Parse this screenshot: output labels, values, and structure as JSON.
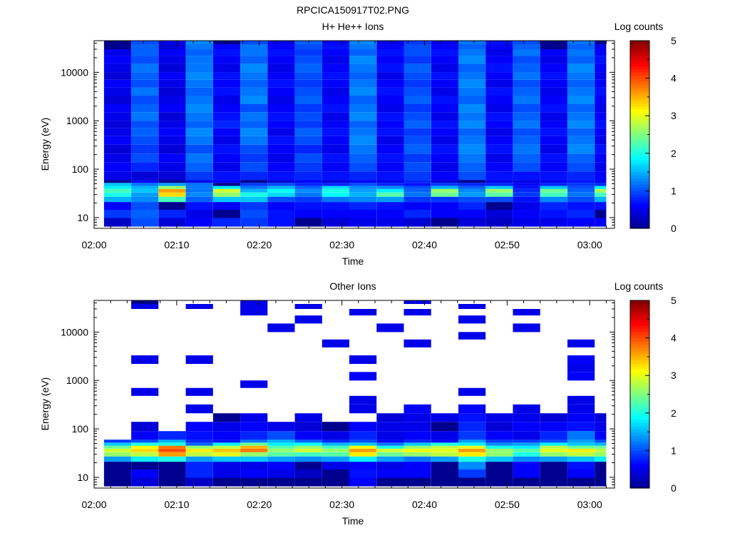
{
  "figure": {
    "title": "RPCICA150917T02.PNG"
  },
  "colormap": {
    "name": "jet",
    "stops": [
      "#00008f",
      "#0000ff",
      "#0080ff",
      "#00ffff",
      "#80ff80",
      "#ffff00",
      "#ff8000",
      "#ff0000",
      "#800000"
    ]
  },
  "chart_data": [
    {
      "type": "heatmap",
      "title": "H+ He++ Ions",
      "xlabel": "Time",
      "ylabel": "Energy (eV)",
      "colorbar_label": "Log counts",
      "colorbar_ticks": [
        "0",
        "1",
        "2",
        "3",
        "4",
        "5"
      ],
      "colorbar_range": [
        0,
        5
      ],
      "x_ticks": [
        "02:00",
        "02:10",
        "02:20",
        "02:30",
        "02:40",
        "02:50",
        "03:00"
      ],
      "x_range_minutes": [
        0,
        63
      ],
      "y_scale": "log",
      "y_ticks": [
        "10",
        "100",
        "1000",
        "10000"
      ],
      "y_range": [
        6,
        45000
      ],
      "time_bins_minutes": [
        1.2,
        4.5,
        7.8,
        11.1,
        14.4,
        17.7,
        21.0,
        24.3,
        27.6,
        30.9,
        34.2,
        37.5,
        40.8,
        44.1,
        47.4,
        50.7,
        54.0,
        57.3,
        60.6,
        62.0
      ],
      "energy_bins_eV": [
        6.5,
        9.8,
        14.5,
        21,
        27,
        33,
        39,
        45,
        52,
        60,
        90,
        140,
        210,
        320,
        480,
        700,
        1000,
        1500,
        2200,
        3300,
        4800,
        7000,
        10000,
        15000,
        22000,
        30000,
        38000,
        45000
      ],
      "values": [
        [
          0.3,
          0.9,
          0.6,
          1.5,
          2.0,
          2.2,
          1.8,
          1.6,
          0.0,
          0.5,
          0.6,
          0.5,
          0.4,
          0.6,
          0.5,
          0.4,
          0.5,
          0.6,
          0.4,
          0.5,
          0.6,
          0.4,
          0.5,
          0.6,
          0.5,
          0.0,
          0.0
        ],
        [
          1.0,
          1.1,
          1.0,
          1.3,
          1.4,
          1.6,
          1.5,
          1.2,
          0.6,
          0.4,
          0.8,
          1.0,
          0.9,
          1.0,
          1.1,
          1.0,
          1.2,
          1.1,
          1.0,
          1.2,
          1.0,
          1.1,
          1.2,
          1.0,
          1.1,
          1.1,
          1.0
        ],
        [
          0.4,
          0.8,
          0.0,
          2.2,
          3.3,
          3.6,
          2.6,
          1.4,
          0.0,
          0.4,
          0.5,
          0.6,
          0.4,
          0.5,
          0.6,
          0.5,
          0.4,
          0.6,
          0.5,
          0.4,
          0.5,
          0.6,
          0.4,
          0.5,
          0.6,
          0.4,
          0.5
        ],
        [
          0.6,
          0.5,
          0.7,
          1.1,
          1.3,
          1.2,
          1.2,
          1.2,
          0.5,
          0.9,
          1.1,
          1.2,
          1.0,
          1.2,
          1.3,
          1.1,
          1.2,
          1.3,
          1.2,
          1.1,
          1.2,
          1.3,
          1.2,
          1.2,
          1.1,
          1.2,
          1.3
        ],
        [
          0.8,
          0.0,
          0.6,
          1.6,
          2.6,
          2.9,
          1.8,
          0.0,
          0.6,
          0.7,
          0.5,
          0.6,
          0.7,
          0.5,
          0.6,
          0.8,
          0.7,
          0.6,
          0.5,
          0.7,
          0.6,
          0.7,
          0.5,
          0.6,
          0.7,
          0.6,
          0.0
        ],
        [
          0.9,
          1.0,
          0.9,
          1.6,
          2.0,
          1.5,
          1.2,
          0.9,
          0.0,
          0.8,
          1.0,
          0.9,
          1.0,
          1.2,
          1.3,
          1.1,
          1.2,
          1.0,
          1.3,
          1.2,
          1.1,
          1.2,
          1.3,
          1.1,
          1.2,
          1.2,
          1.0
        ],
        [
          0.7,
          0.7,
          0.6,
          1.0,
          1.7,
          1.9,
          1.5,
          1.0,
          0.4,
          0.7,
          0.6,
          0.5,
          0.6,
          0.7,
          0.5,
          0.6,
          0.7,
          0.6,
          0.5,
          0.6,
          0.7,
          0.6,
          0.5,
          0.6,
          0.7,
          0.6,
          0.5
        ],
        [
          0.0,
          0.6,
          0.7,
          0.9,
          1.2,
          1.3,
          1.1,
          0.8,
          0.6,
          0.8,
          0.9,
          1.0,
          0.8,
          1.0,
          1.1,
          0.9,
          1.0,
          0.9,
          1.1,
          1.0,
          0.9,
          1.0,
          1.1,
          1.0,
          0.9,
          1.0,
          1.1
        ],
        [
          0.4,
          0.6,
          0.7,
          1.2,
          1.9,
          2.0,
          1.7,
          0.8,
          0.4,
          0.7,
          0.6,
          0.7,
          0.5,
          0.6,
          0.7,
          0.6,
          0.5,
          0.7,
          0.6,
          0.5,
          0.6,
          0.7,
          0.6,
          0.5,
          0.6,
          0.7,
          0.6
        ],
        [
          0.5,
          0.6,
          0.8,
          1.3,
          1.5,
          1.4,
          1.3,
          1.0,
          0.6,
          0.8,
          1.0,
          1.1,
          1.2,
          1.3,
          1.2,
          1.1,
          1.3,
          1.2,
          1.1,
          1.3,
          1.2,
          1.1,
          1.2,
          1.3,
          1.1,
          1.2,
          1.3
        ],
        [
          0.5,
          0.6,
          0.7,
          1.4,
          2.3,
          1.8,
          1.3,
          0.8,
          0.5,
          0.7,
          0.6,
          0.7,
          0.6,
          0.5,
          0.7,
          0.6,
          0.7,
          0.5,
          0.6,
          0.7,
          0.6,
          0.5,
          0.7,
          0.6,
          0.7,
          0.6,
          0.5
        ],
        [
          0.4,
          0.8,
          0.6,
          0.9,
          1.2,
          1.1,
          1.0,
          0.7,
          0.8,
          0.9,
          1.0,
          0.9,
          1.1,
          1.0,
          0.9,
          1.1,
          1.0,
          0.9,
          1.1,
          1.0,
          0.9,
          1.0,
          1.1,
          0.9,
          1.0,
          1.0,
          0.9
        ],
        [
          0.0,
          0.6,
          0.6,
          0.9,
          2.4,
          2.6,
          1.5,
          0.9,
          0.4,
          0.6,
          0.5,
          0.6,
          0.7,
          0.5,
          0.6,
          0.7,
          0.5,
          0.6,
          0.7,
          0.5,
          0.6,
          0.7,
          0.5,
          0.6,
          0.7,
          0.6,
          0.5
        ],
        [
          0.4,
          0.6,
          0.8,
          1.0,
          1.4,
          1.3,
          1.1,
          0.8,
          0.0,
          1.0,
          1.1,
          1.2,
          1.3,
          1.2,
          1.1,
          1.3,
          1.2,
          1.3,
          1.1,
          1.2,
          1.3,
          1.2,
          1.1,
          1.3,
          1.2,
          1.1,
          1.2
        ],
        [
          0.3,
          0.4,
          0.0,
          1.0,
          2.3,
          2.6,
          1.6,
          0.8,
          0.5,
          0.7,
          0.6,
          0.5,
          0.7,
          0.6,
          0.5,
          0.6,
          0.7,
          0.5,
          0.6,
          0.7,
          0.5,
          0.6,
          0.7,
          0.6,
          0.5,
          0.6,
          0.7
        ],
        [
          0.5,
          0.6,
          0.5,
          0.7,
          0.9,
          0.8,
          0.7,
          0.6,
          0.5,
          0.7,
          1.0,
          1.1,
          1.2,
          1.1,
          1.0,
          1.2,
          1.1,
          1.0,
          1.2,
          1.1,
          1.0,
          1.2,
          1.1,
          1.0,
          1.2,
          1.1,
          1.0
        ],
        [
          0.5,
          0.7,
          0.8,
          1.3,
          2.2,
          2.4,
          1.6,
          0.8,
          0.5,
          0.7,
          0.6,
          0.7,
          0.5,
          0.6,
          0.7,
          0.6,
          0.5,
          0.7,
          0.6,
          0.5,
          0.6,
          0.7,
          0.6,
          0.5,
          0.6,
          0.0,
          0.0
        ],
        [
          0.6,
          0.8,
          0.7,
          1.0,
          1.2,
          1.1,
          1.0,
          0.9,
          0.7,
          0.8,
          1.0,
          1.1,
          1.3,
          1.2,
          1.1,
          1.3,
          1.2,
          1.1,
          1.3,
          1.2,
          1.1,
          1.2,
          1.3,
          1.1,
          1.2,
          1.1,
          1.2
        ],
        [
          0.6,
          0.0,
          0.7,
          1.5,
          2.2,
          2.7,
          1.8,
          0.8,
          0.5,
          0.6,
          0.5,
          0.6,
          0.7,
          0.5,
          0.6,
          0.7,
          0.6,
          0.5,
          0.6,
          0.7,
          0.6,
          0.5,
          0.6,
          0.7,
          0.6,
          0.5,
          0.0
        ]
      ]
    },
    {
      "type": "heatmap",
      "title": "Other Ions",
      "xlabel": "Time",
      "ylabel": "Energy (eV)",
      "colorbar_label": "Log counts",
      "colorbar_ticks": [
        "0",
        "1",
        "2",
        "3",
        "4",
        "5"
      ],
      "colorbar_range": [
        0,
        5
      ],
      "x_ticks": [
        "02:00",
        "02:10",
        "02:20",
        "02:30",
        "02:40",
        "02:50",
        "03:00"
      ],
      "x_range_minutes": [
        0,
        63
      ],
      "y_scale": "log",
      "y_ticks": [
        "10",
        "100",
        "1000",
        "10000"
      ],
      "y_range": [
        6,
        45000
      ],
      "time_bins_minutes": [
        1.2,
        4.5,
        7.8,
        11.1,
        14.4,
        17.7,
        21.0,
        24.3,
        27.6,
        30.9,
        34.2,
        37.5,
        40.8,
        44.1,
        47.4,
        50.7,
        54.0,
        57.3,
        60.6,
        62.0
      ],
      "energy_bins_eV": [
        6.5,
        9.8,
        14.5,
        21,
        27,
        33,
        39,
        45,
        52,
        60,
        90,
        140,
        210,
        320,
        480,
        700,
        1000,
        1500,
        2200,
        3300,
        4800,
        7000,
        10000,
        15000,
        22000,
        30000,
        38000,
        45000
      ],
      "values": [
        [
          0.0,
          0.0,
          0.0,
          1.4,
          2.6,
          2.9,
          2.4,
          1.6,
          0.9,
          null,
          null,
          null,
          null,
          null,
          null,
          null,
          null,
          null,
          null,
          null,
          null,
          null,
          null,
          null,
          null,
          null,
          null
        ],
        [
          0.4,
          0.6,
          0.0,
          1.8,
          2.8,
          3.3,
          3.1,
          2.0,
          1.0,
          0.6,
          0.4,
          null,
          null,
          null,
          0.5,
          null,
          null,
          null,
          0.5,
          null,
          null,
          null,
          null,
          null,
          null,
          0.5,
          0.0
        ],
        [
          0.0,
          0.0,
          0.0,
          2.0,
          3.6,
          4.0,
          3.8,
          2.0,
          1.5,
          0.8,
          null,
          null,
          null,
          null,
          null,
          null,
          null,
          null,
          null,
          null,
          null,
          null,
          null,
          null,
          null,
          null,
          null
        ],
        [
          0.3,
          0.8,
          0.8,
          1.4,
          2.8,
          3.2,
          2.6,
          1.1,
          0.8,
          0.7,
          0.6,
          null,
          0.5,
          null,
          0.5,
          null,
          null,
          null,
          0.5,
          null,
          null,
          null,
          null,
          null,
          null,
          0.5,
          null
        ],
        [
          0.0,
          0.5,
          0.5,
          1.6,
          3.0,
          3.4,
          2.8,
          1.8,
          0.7,
          0.6,
          0.5,
          0.0,
          null,
          null,
          null,
          null,
          null,
          null,
          null,
          null,
          null,
          null,
          null,
          null,
          null,
          null,
          null
        ],
        [
          0.0,
          0.6,
          0.5,
          1.6,
          2.6,
          3.8,
          3.5,
          2.4,
          1.2,
          0.8,
          0.6,
          0.5,
          null,
          null,
          null,
          0.5,
          null,
          null,
          null,
          null,
          null,
          null,
          null,
          null,
          0.5,
          0.5,
          0.5
        ],
        [
          0.0,
          0.5,
          0.6,
          1.4,
          2.3,
          2.6,
          2.3,
          1.8,
          1.5,
          1.0,
          0.5,
          null,
          null,
          null,
          null,
          null,
          null,
          null,
          null,
          null,
          null,
          null,
          0.5,
          null,
          null,
          null,
          null
        ],
        [
          0.0,
          0.3,
          0.0,
          1.3,
          2.2,
          2.9,
          2.6,
          1.9,
          1.1,
          0.6,
          0.4,
          0.5,
          null,
          null,
          null,
          null,
          null,
          null,
          null,
          null,
          null,
          null,
          null,
          0.5,
          null,
          0.5,
          null
        ],
        [
          0.0,
          0.0,
          0.5,
          1.4,
          2.3,
          2.6,
          2.2,
          1.5,
          0.8,
          0.5,
          0.0,
          null,
          null,
          null,
          null,
          null,
          null,
          null,
          null,
          null,
          0.5,
          null,
          null,
          null,
          null,
          null,
          null
        ],
        [
          0.6,
          0.7,
          0.6,
          1.8,
          3.2,
          3.6,
          3.1,
          1.6,
          1.0,
          0.8,
          0.6,
          null,
          0.5,
          0.5,
          null,
          null,
          0.6,
          null,
          0.5,
          null,
          null,
          null,
          null,
          null,
          0.5,
          null,
          null
        ],
        [
          0.0,
          0.6,
          0.5,
          1.4,
          2.4,
          2.9,
          2.0,
          1.2,
          0.6,
          0.5,
          0.5,
          0.4,
          null,
          null,
          null,
          null,
          null,
          null,
          null,
          null,
          null,
          null,
          0.5,
          null,
          null,
          null,
          null
        ],
        [
          0.0,
          0.6,
          0.6,
          1.2,
          2.6,
          3.1,
          2.6,
          1.6,
          0.8,
          0.6,
          0.5,
          0.5,
          0.6,
          null,
          null,
          null,
          null,
          null,
          null,
          null,
          0.5,
          null,
          null,
          null,
          0.5,
          null,
          0.5
        ],
        [
          0.0,
          0.0,
          0.0,
          1.4,
          2.8,
          3.0,
          2.8,
          2.0,
          0.6,
          0.5,
          0.0,
          0.5,
          null,
          null,
          null,
          null,
          null,
          null,
          null,
          null,
          null,
          null,
          null,
          null,
          null,
          null,
          null
        ],
        [
          0.0,
          0.9,
          1.3,
          2.0,
          3.2,
          3.6,
          3.0,
          1.8,
          1.4,
          0.9,
          0.8,
          0.7,
          0.6,
          null,
          0.5,
          null,
          null,
          null,
          null,
          null,
          null,
          0.5,
          null,
          0.5,
          null,
          0.5,
          null
        ],
        [
          0.0,
          0.0,
          0.0,
          1.6,
          2.6,
          2.6,
          2.0,
          1.3,
          0.9,
          0.6,
          0.4,
          0.5,
          null,
          null,
          null,
          null,
          null,
          null,
          null,
          null,
          null,
          null,
          null,
          null,
          null,
          null,
          null
        ],
        [
          0.0,
          0.6,
          0.6,
          1.3,
          2.0,
          2.3,
          1.8,
          1.4,
          0.9,
          0.5,
          0.6,
          0.5,
          0.5,
          null,
          null,
          null,
          null,
          null,
          null,
          null,
          null,
          null,
          0.5,
          null,
          0.5,
          null,
          null
        ],
        [
          0.0,
          0.0,
          0.0,
          1.4,
          2.6,
          3.0,
          2.8,
          1.8,
          1.0,
          0.8,
          0.6,
          0.4,
          null,
          null,
          null,
          null,
          null,
          null,
          null,
          null,
          null,
          null,
          null,
          null,
          null,
          null,
          null
        ],
        [
          0.0,
          0.6,
          0.7,
          1.6,
          2.8,
          3.2,
          2.4,
          1.6,
          1.4,
          1.2,
          0.7,
          0.6,
          0.5,
          0.5,
          null,
          null,
          0.6,
          0.5,
          0.6,
          null,
          0.5,
          null,
          null,
          null,
          null,
          null,
          null
        ],
        [
          0.0,
          0.0,
          0.0,
          1.8,
          2.6,
          2.8,
          2.4,
          1.5,
          1.0,
          0.6,
          0.5,
          0.4,
          null,
          null,
          null,
          null,
          null,
          null,
          null,
          null,
          null,
          null,
          null,
          null,
          null,
          null,
          null
        ]
      ]
    }
  ]
}
